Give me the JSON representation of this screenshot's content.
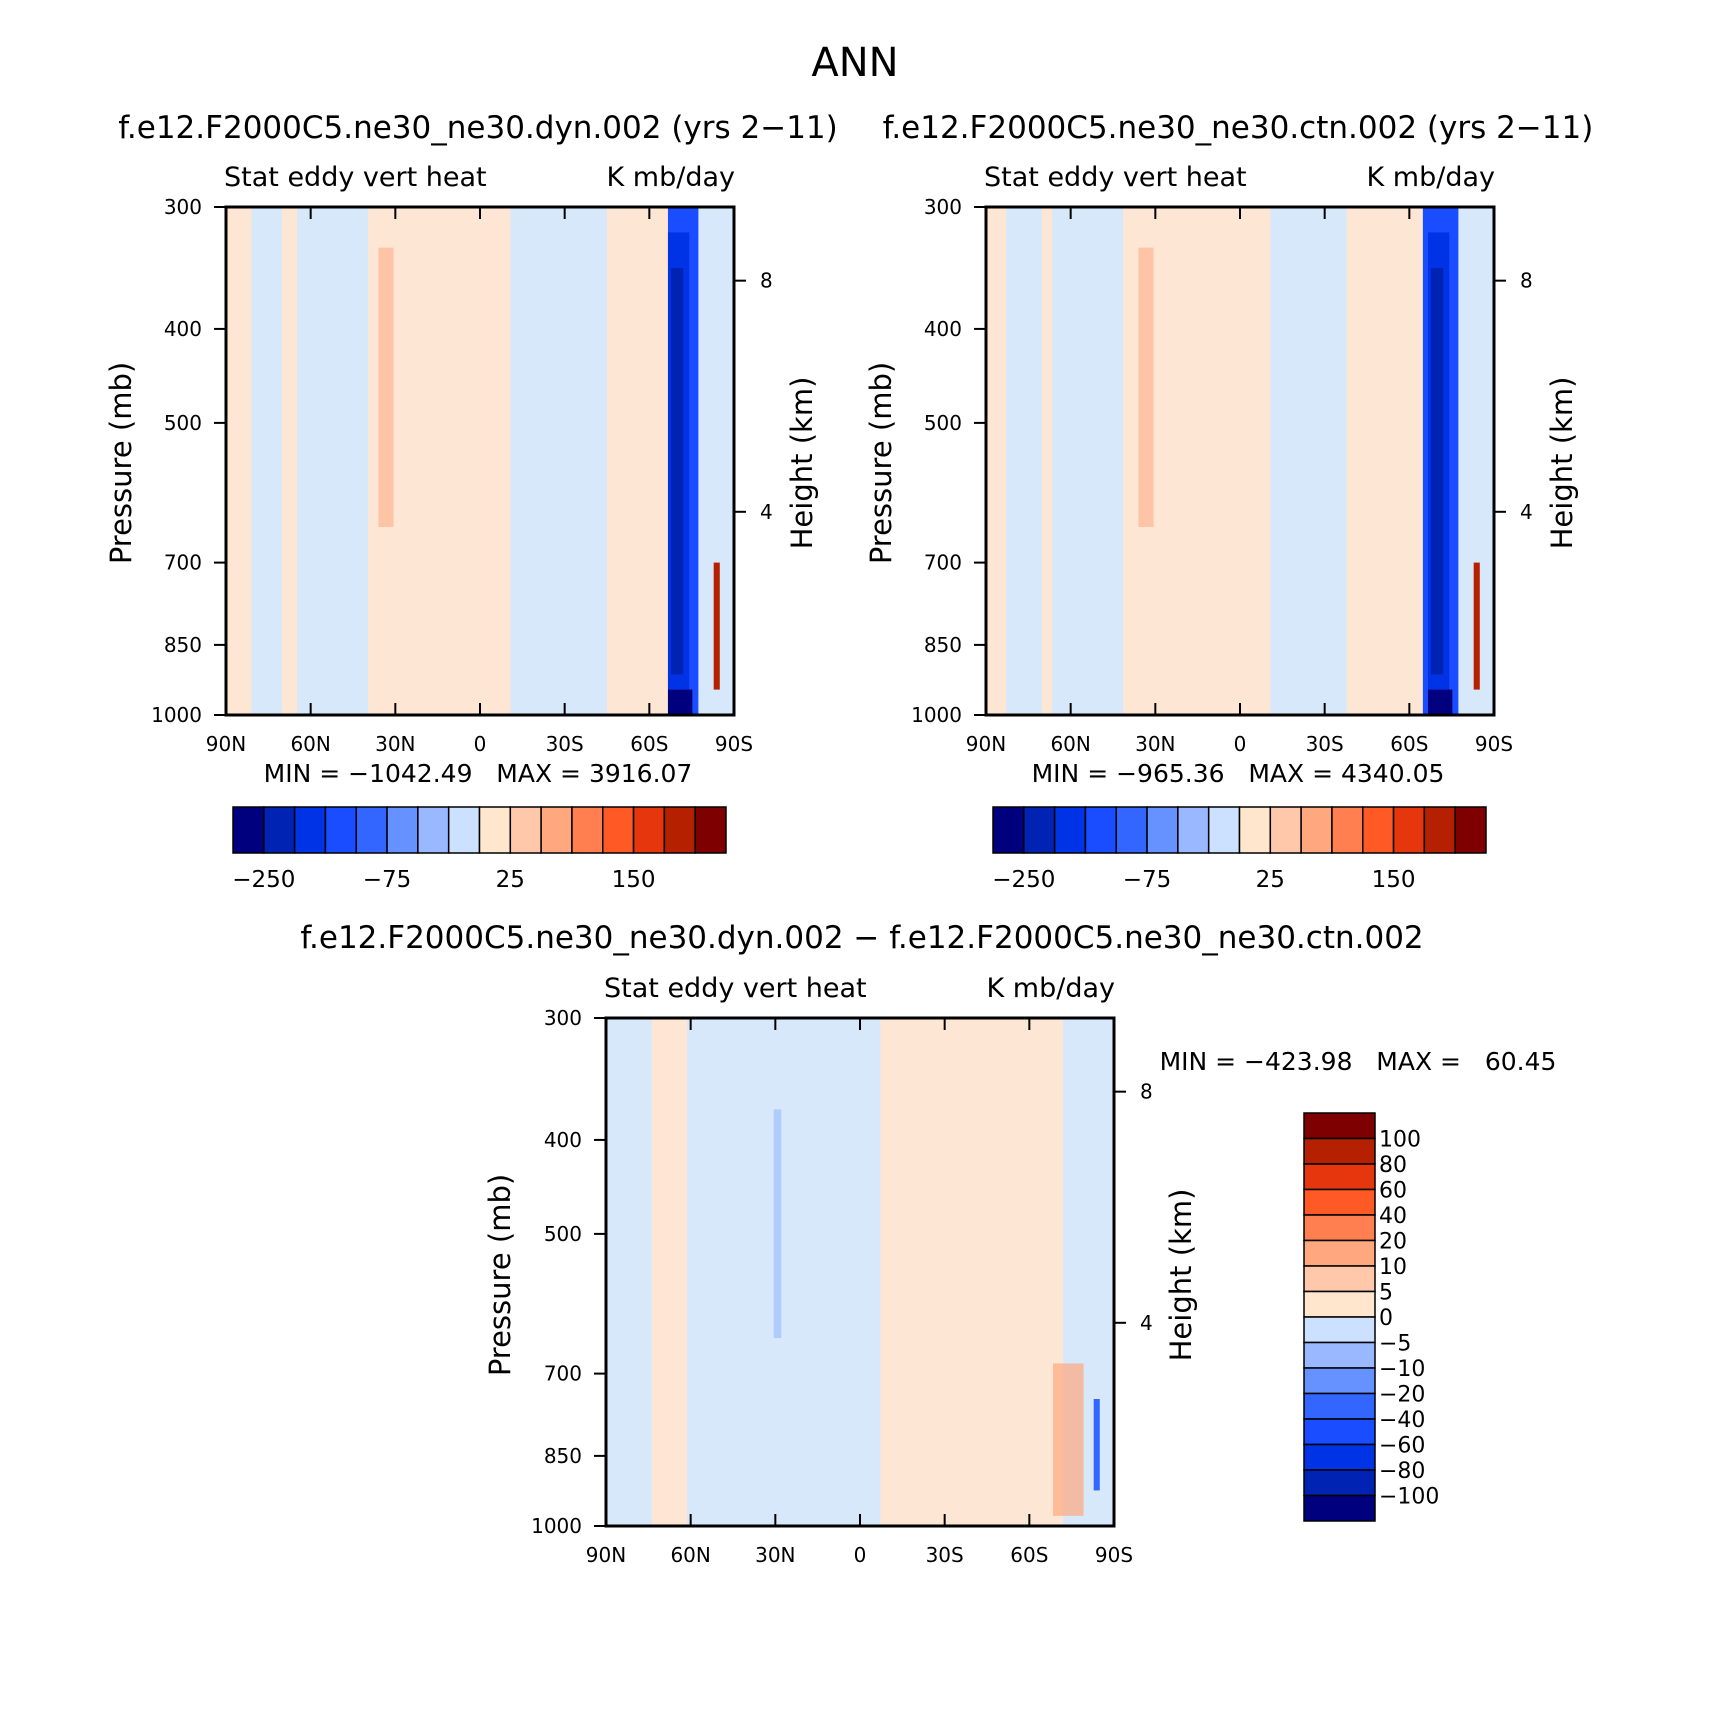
{
  "page_title": "ANN",
  "colors": {
    "levels_fill": [
      "#00007f",
      "#0023b4",
      "#0033e6",
      "#1a4dff",
      "#3366ff",
      "#6692ff",
      "#99b8ff",
      "#cce0ff",
      "#ffe6cc",
      "#ffc8aa",
      "#ffa77f",
      "#ff7f50",
      "#ff5a26",
      "#e6360d",
      "#b42000",
      "#7f0000"
    ],
    "bg_light_blue": "#d7e8fb",
    "bg_light_orange": "#fde7d4"
  },
  "chart_data": [
    {
      "type": "heatmap",
      "title": "f.e12.F2000C5.ne30_ne30.dyn.002 (yrs 2−11)",
      "subtitle_left": "Stat eddy vert heat",
      "subtitle_right": "K mb/day",
      "ylabel": "Pressure (mb)",
      "ylabel_right": "Height (km)",
      "x_ticks": [
        "90N",
        "60N",
        "30N",
        "0",
        "30S",
        "60S",
        "90S"
      ],
      "y_ticks": [
        "300",
        "400",
        "500",
        "700",
        "850",
        "1000"
      ],
      "y_ticks_right": [
        "8",
        "4"
      ],
      "min_max_text": "MIN = −1042.49   MAX = 3916.07",
      "colorbar_labels": [
        "−250",
        "−75",
        "25",
        "150"
      ],
      "bands": [
        [
          0.0,
          0.05,
          "o"
        ],
        [
          0.05,
          0.11,
          "b"
        ],
        [
          0.11,
          0.14,
          "o"
        ],
        [
          0.14,
          0.28,
          "b"
        ],
        [
          0.28,
          0.45,
          "o"
        ],
        [
          0.45,
          0.56,
          "o"
        ],
        [
          0.56,
          0.75,
          "b"
        ],
        [
          0.75,
          0.87,
          "o"
        ],
        [
          0.87,
          0.93,
          "d"
        ],
        [
          0.93,
          1.0,
          "b"
        ]
      ]
    },
    {
      "type": "heatmap",
      "title": "f.e12.F2000C5.ne30_ne30.ctn.002 (yrs 2−11)",
      "subtitle_left": "Stat eddy vert heat",
      "subtitle_right": "K mb/day",
      "ylabel": "Pressure (mb)",
      "ylabel_right": "Height (km)",
      "x_ticks": [
        "90N",
        "60N",
        "30N",
        "0",
        "30S",
        "60S",
        "90S"
      ],
      "y_ticks": [
        "300",
        "400",
        "500",
        "700",
        "850",
        "1000"
      ],
      "y_ticks_right": [
        "8",
        "4"
      ],
      "min_max_text": "MIN = −965.36   MAX = 4340.05",
      "colorbar_labels": [
        "−250",
        "−75",
        "25",
        "150"
      ],
      "bands": [
        [
          0.0,
          0.04,
          "o"
        ],
        [
          0.04,
          0.11,
          "b"
        ],
        [
          0.11,
          0.13,
          "o"
        ],
        [
          0.13,
          0.27,
          "b"
        ],
        [
          0.27,
          0.45,
          "o"
        ],
        [
          0.45,
          0.56,
          "o"
        ],
        [
          0.56,
          0.71,
          "b"
        ],
        [
          0.71,
          0.86,
          "o"
        ],
        [
          0.86,
          0.93,
          "d"
        ],
        [
          0.93,
          1.0,
          "b"
        ]
      ]
    },
    {
      "type": "heatmap",
      "title": "f.e12.F2000C5.ne30_ne30.dyn.002 − f.e12.F2000C5.ne30_ne30.ctn.002",
      "subtitle_left": "Stat eddy vert heat",
      "subtitle_right": "K mb/day",
      "ylabel": "Pressure (mb)",
      "ylabel_right": "Height (km)",
      "x_ticks": [
        "90N",
        "60N",
        "30N",
        "0",
        "30S",
        "60S",
        "90S"
      ],
      "y_ticks": [
        "300",
        "400",
        "500",
        "700",
        "850",
        "1000"
      ],
      "y_ticks_right": [
        "8",
        "4"
      ],
      "min_max_text": "MIN = −423.98   MAX =   60.45",
      "colorbar_labels": [
        "100",
        "80",
        "60",
        "40",
        "20",
        "10",
        "5",
        "0",
        "−5",
        "−10",
        "−20",
        "−40",
        "−60",
        "−80",
        "−100"
      ],
      "bands": [
        [
          0.0,
          0.09,
          "b"
        ],
        [
          0.09,
          0.16,
          "o"
        ],
        [
          0.16,
          0.26,
          "b"
        ],
        [
          0.26,
          0.33,
          "b"
        ],
        [
          0.33,
          0.4,
          "b"
        ],
        [
          0.4,
          0.54,
          "b"
        ],
        [
          0.54,
          0.62,
          "o"
        ],
        [
          0.62,
          0.8,
          "o"
        ],
        [
          0.8,
          0.9,
          "o"
        ],
        [
          0.9,
          1.0,
          "b"
        ]
      ]
    }
  ]
}
